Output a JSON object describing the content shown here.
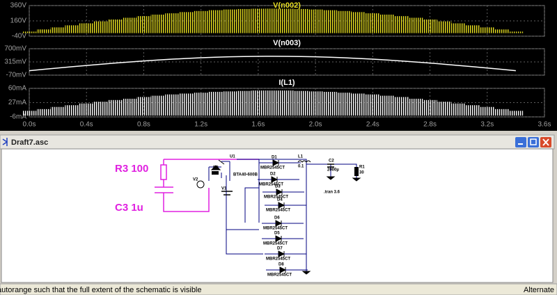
{
  "chart_data": [
    {
      "type": "envelope",
      "title": "V(n002)",
      "color": "#e8e020",
      "x": [
        0,
        0.1,
        0.2,
        0.3,
        0.4,
        0.5,
        0.6,
        0.7,
        0.8,
        0.9,
        1.0,
        1.1,
        1.2,
        1.3,
        1.4,
        1.5,
        1.6,
        1.7,
        1.8,
        1.9,
        2.0,
        2.1,
        2.2,
        2.3,
        2.4,
        2.5,
        2.6,
        2.7,
        2.8,
        2.9,
        3.0,
        3.1,
        3.2,
        3.3,
        3.4
      ],
      "upper": [
        20,
        48,
        75,
        102,
        128,
        154,
        178,
        201,
        222,
        242,
        259,
        275,
        289,
        300,
        309,
        315,
        319,
        320,
        319,
        315,
        309,
        300,
        289,
        275,
        259,
        242,
        222,
        201,
        178,
        154,
        128,
        102,
        75,
        48,
        20
      ],
      "lower": [
        0,
        0,
        0,
        0,
        0,
        0,
        0,
        0,
        0,
        0,
        0,
        0,
        0,
        0,
        0,
        0,
        0,
        0,
        0,
        0,
        0,
        0,
        0,
        0,
        0,
        0,
        0,
        0,
        0,
        0,
        0,
        0,
        0,
        0,
        0
      ],
      "ylim": [
        -40,
        360
      ],
      "yticks": [
        {
          "value": 360,
          "label": "360V"
        },
        {
          "value": 160,
          "label": "160V"
        },
        {
          "value": -40,
          "label": "-40V"
        }
      ]
    },
    {
      "type": "line",
      "title": "V(n003)",
      "color": "#ffffff",
      "x": [
        0,
        0.1,
        0.2,
        0.3,
        0.4,
        0.5,
        0.6,
        0.7,
        0.8,
        0.9,
        1.0,
        1.1,
        1.2,
        1.3,
        1.4,
        1.5,
        1.6,
        1.7,
        1.8,
        1.9,
        2.0,
        2.1,
        2.2,
        2.3,
        2.4,
        2.5,
        2.6,
        2.7,
        2.8,
        2.9,
        3.0,
        3.1,
        3.2,
        3.3,
        3.4
      ],
      "values": [
        60,
        99,
        137,
        175,
        212,
        247,
        281,
        313,
        343,
        370,
        395,
        417,
        436,
        451,
        464,
        473,
        478,
        480,
        478,
        473,
        464,
        451,
        436,
        417,
        395,
        370,
        343,
        313,
        281,
        247,
        212,
        175,
        137,
        99,
        60
      ],
      "ylim": [
        -70,
        700
      ],
      "yticks": [
        {
          "value": 700,
          "label": "700mV"
        },
        {
          "value": 315,
          "label": "315mV"
        },
        {
          "value": -70,
          "label": "-70mV"
        }
      ]
    },
    {
      "type": "envelope",
      "title": "I(L1)",
      "color": "#ffffff",
      "x": [
        0,
        0.1,
        0.2,
        0.3,
        0.4,
        0.5,
        0.6,
        0.7,
        0.8,
        0.9,
        1.0,
        1.1,
        1.2,
        1.3,
        1.4,
        1.5,
        1.6,
        1.7,
        1.8,
        1.9,
        2.0,
        2.1,
        2.2,
        2.3,
        2.4,
        2.5,
        2.6,
        2.7,
        2.8,
        2.9,
        3.0,
        3.1,
        3.2,
        3.3,
        3.4
      ],
      "upper": [
        8,
        12,
        17,
        21,
        25,
        29,
        33,
        36,
        40,
        43,
        46,
        48,
        50,
        52,
        53,
        54,
        55,
        55,
        55,
        54,
        53,
        52,
        50,
        48,
        46,
        43,
        40,
        36,
        33,
        29,
        25,
        21,
        17,
        12,
        8
      ],
      "lower": [
        -3,
        -3,
        -3,
        -3,
        -3,
        -3,
        -3,
        -3,
        -3,
        -3,
        -3,
        -3,
        -3,
        -3,
        -3,
        -3,
        -3,
        -3,
        -3,
        -3,
        -3,
        -3,
        -3,
        -3,
        -3,
        -3,
        -3,
        -3,
        -3,
        -3,
        -3,
        -3,
        -3,
        -3,
        -3
      ],
      "ylim": [
        -6,
        60
      ],
      "yticks": [
        {
          "value": 60,
          "label": "60mA"
        },
        {
          "value": 27,
          "label": "27mA"
        },
        {
          "value": -6,
          "label": "-6mA"
        }
      ],
      "xlim": [
        0,
        3.6
      ],
      "xticks": [
        {
          "value": 0,
          "label": "0.0s"
        },
        {
          "value": 0.4,
          "label": "0.4s"
        },
        {
          "value": 0.8,
          "label": "0.8s"
        },
        {
          "value": 1.2,
          "label": "1.2s"
        },
        {
          "value": 1.6,
          "label": "1.6s"
        },
        {
          "value": 2.0,
          "label": "2.0s"
        },
        {
          "value": 2.4,
          "label": "2.4s"
        },
        {
          "value": 2.8,
          "label": "2.8s"
        },
        {
          "value": 3.2,
          "label": "3.2s"
        },
        {
          "value": 3.6,
          "label": "3.6s"
        }
      ]
    }
  ],
  "window": {
    "title": "Draft7.asc"
  },
  "schematic": {
    "r3": "R3 100",
    "c3": "C3 1u",
    "u1": "U1",
    "r2": "R2",
    "v2": "V2",
    "v1": "V1",
    "triac": "BTA40-600B",
    "l1": "L1",
    "l1_value": "0.1",
    "c2": "C2",
    "c2_value": "2000µ",
    "r1": "R1",
    "r1_value": "30",
    "tran": ".tran 3.6",
    "diodes": [
      "D1",
      "D2",
      "D3",
      "D4",
      "D6",
      "D5",
      "D7",
      "D8"
    ],
    "parts": [
      "MBR2545CT",
      "MBR2545CT",
      "MBR2545CT",
      "MBR2545CT",
      "MBR2545CT",
      "MBR2545CT",
      "MBR2545CT",
      "MBR2545CT"
    ]
  },
  "status": {
    "message": "autorange such that the full extent of the schematic is visible",
    "mode": "Alternate"
  }
}
